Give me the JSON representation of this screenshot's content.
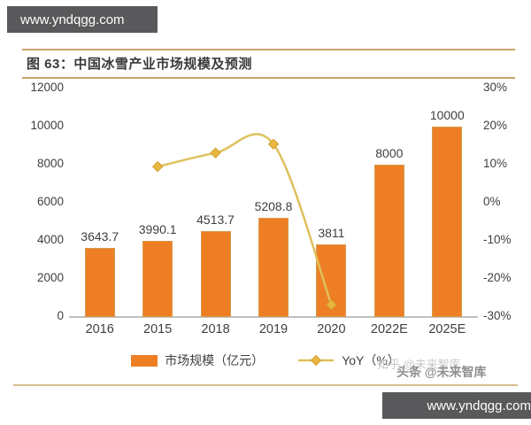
{
  "banner_top": {
    "text": "www.yndqgg.com"
  },
  "banner_bottom": {
    "text": "www.yndqgg.com"
  },
  "figure": {
    "title": "图 63：中国冰雪产业市场规模及预测"
  },
  "watermarks": {
    "zhihu": "知乎 @未来智库",
    "toutiao": "头条 @未来智库"
  },
  "colors": {
    "bar": "#EE7E24",
    "bar_border": "#D79A4E",
    "line": "#DFC05C",
    "marker": "#E9B73F",
    "marker_border": "#D39E2D",
    "banner_bg": "#59595B",
    "rule": "#C8A468",
    "rule_bottom": "#D8BE8C",
    "text": "#3F3F3F",
    "baseline": "#C0C0C0",
    "watermark_light": "#C9C9C9",
    "watermark_dark": "#8F8F8F"
  },
  "chart_data": {
    "type": "bar",
    "categories": [
      "2016",
      "2015",
      "2018",
      "2019",
      "2020",
      "2022E",
      "2025E"
    ],
    "series": [
      {
        "name": "市场规模（亿元）",
        "type": "bar",
        "axis": "left",
        "values": [
          3643.7,
          3990.1,
          4513.7,
          5208.8,
          3811,
          8000,
          10000
        ]
      },
      {
        "name": "YoY（%）",
        "type": "line",
        "axis": "right",
        "values": [
          null,
          9.5,
          13.1,
          15.4,
          -26.8,
          null,
          null
        ]
      }
    ],
    "left_axis": {
      "ticks": [
        12000,
        10000,
        8000,
        6000,
        4000,
        2000,
        0
      ],
      "min": 0,
      "max": 12000
    },
    "right_axis": {
      "ticks": [
        "30%",
        "20%",
        "10%",
        "0%",
        "-10%",
        "-20%",
        "-30%"
      ],
      "min": -30,
      "max": 30
    },
    "legend": [
      "市场规模（亿元）",
      "YoY（%）"
    ],
    "legend_position": "bottom",
    "grid": false
  }
}
